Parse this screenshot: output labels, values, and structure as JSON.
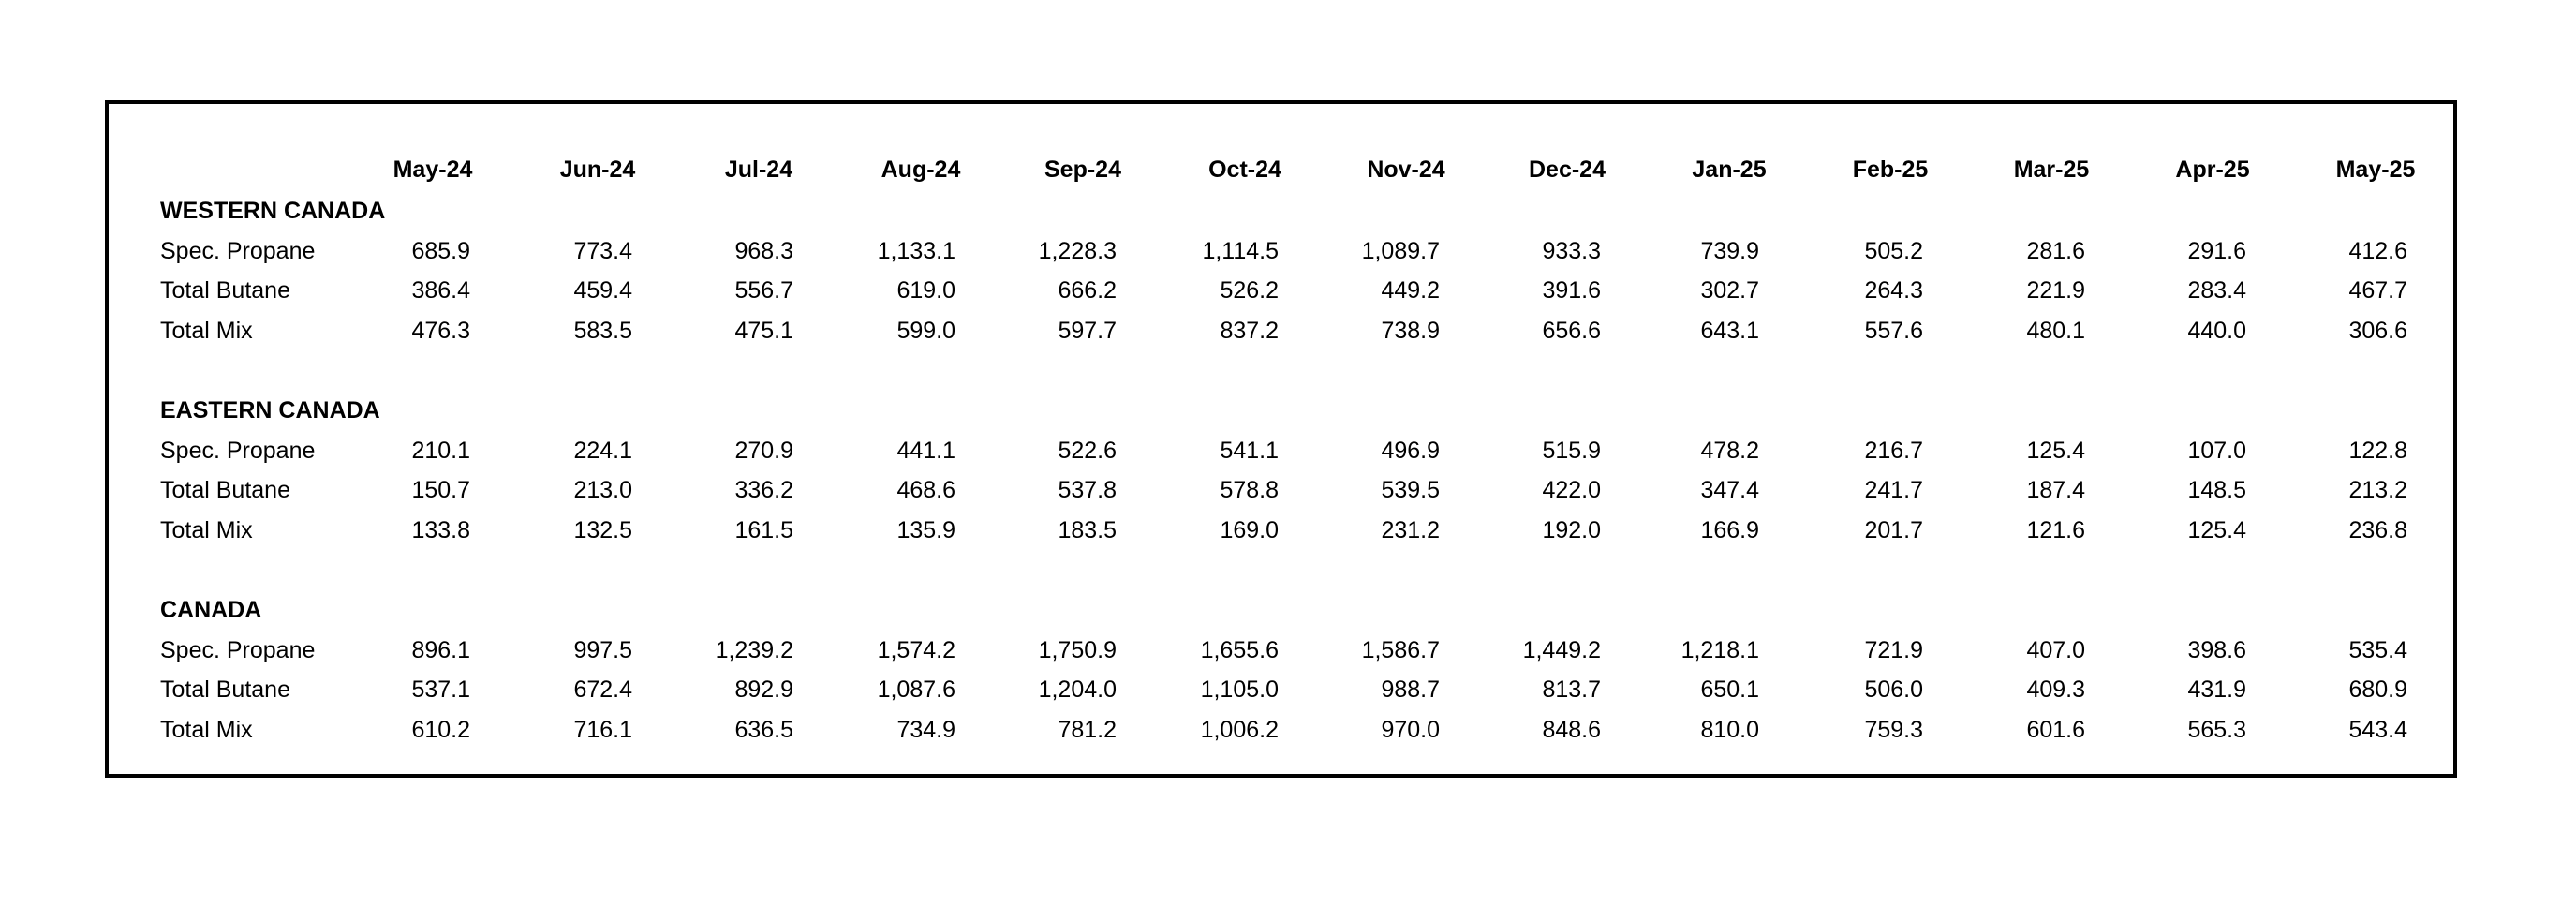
{
  "months": [
    "May-24",
    "Jun-24",
    "Jul-24",
    "Aug-24",
    "Sep-24",
    "Oct-24",
    "Nov-24",
    "Dec-24",
    "Jan-25",
    "Feb-25",
    "Mar-25",
    "Apr-25",
    "May-25"
  ],
  "sections": [
    {
      "title": "WESTERN CANADA",
      "rows": [
        {
          "label": "Spec. Propane",
          "values": [
            "685.9",
            "773.4",
            "968.3",
            "1,133.1",
            "1,228.3",
            "1,114.5",
            "1,089.7",
            "933.3",
            "739.9",
            "505.2",
            "281.6",
            "291.6",
            "412.6"
          ]
        },
        {
          "label": "Total Butane",
          "values": [
            "386.4",
            "459.4",
            "556.7",
            "619.0",
            "666.2",
            "526.2",
            "449.2",
            "391.6",
            "302.7",
            "264.3",
            "221.9",
            "283.4",
            "467.7"
          ]
        },
        {
          "label": "Total Mix",
          "values": [
            "476.3",
            "583.5",
            "475.1",
            "599.0",
            "597.7",
            "837.2",
            "738.9",
            "656.6",
            "643.1",
            "557.6",
            "480.1",
            "440.0",
            "306.6"
          ]
        }
      ]
    },
    {
      "title": "EASTERN CANADA",
      "rows": [
        {
          "label": "Spec. Propane",
          "values": [
            "210.1",
            "224.1",
            "270.9",
            "441.1",
            "522.6",
            "541.1",
            "496.9",
            "515.9",
            "478.2",
            "216.7",
            "125.4",
            "107.0",
            "122.8"
          ]
        },
        {
          "label": "Total Butane",
          "values": [
            "150.7",
            "213.0",
            "336.2",
            "468.6",
            "537.8",
            "578.8",
            "539.5",
            "422.0",
            "347.4",
            "241.7",
            "187.4",
            "148.5",
            "213.2"
          ]
        },
        {
          "label": "Total Mix",
          "values": [
            "133.8",
            "132.5",
            "161.5",
            "135.9",
            "183.5",
            "169.0",
            "231.2",
            "192.0",
            "166.9",
            "201.7",
            "121.6",
            "125.4",
            "236.8"
          ]
        }
      ]
    },
    {
      "title": "CANADA",
      "rows": [
        {
          "label": "Spec. Propane",
          "values": [
            "896.1",
            "997.5",
            "1,239.2",
            "1,574.2",
            "1,750.9",
            "1,655.6",
            "1,586.7",
            "1,449.2",
            "1,218.1",
            "721.9",
            "407.0",
            "398.6",
            "535.4"
          ]
        },
        {
          "label": "Total Butane",
          "values": [
            "537.1",
            "672.4",
            "892.9",
            "1,087.6",
            "1,204.0",
            "1,105.0",
            "988.7",
            "813.7",
            "650.1",
            "506.0",
            "409.3",
            "431.9",
            "680.9"
          ]
        },
        {
          "label": "Total Mix",
          "values": [
            "610.2",
            "716.1",
            "636.5",
            "734.9",
            "781.2",
            "1,006.2",
            "970.0",
            "848.6",
            "810.0",
            "759.3",
            "601.6",
            "565.3",
            "543.4"
          ]
        }
      ]
    }
  ]
}
